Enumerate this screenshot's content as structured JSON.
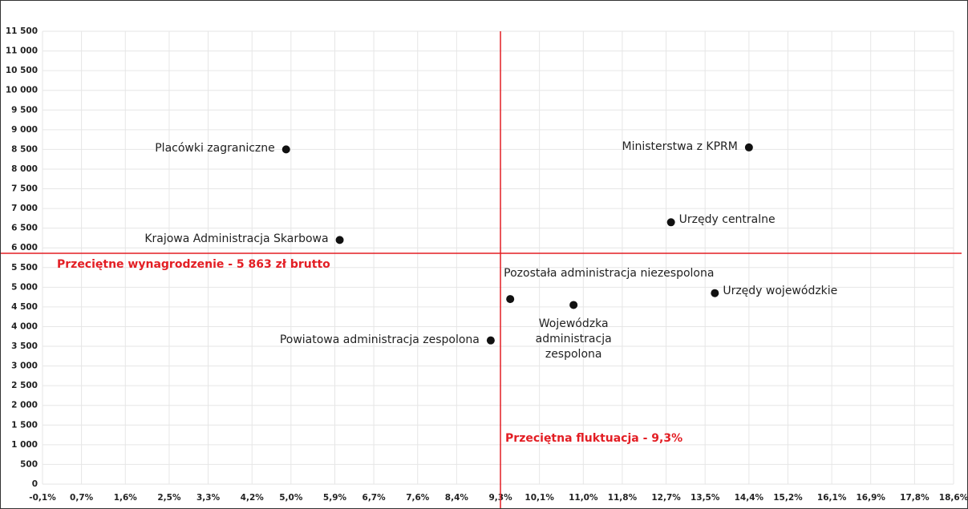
{
  "chart_data": {
    "type": "scatter",
    "xlim": [
      -0.1,
      18.6
    ],
    "xticks": [
      {
        "value": -0.1,
        "label": "-0,1%"
      },
      {
        "value": 0.7,
        "label": "0,7%"
      },
      {
        "value": 1.6,
        "label": "1,6%"
      },
      {
        "value": 2.5,
        "label": "2,5%"
      },
      {
        "value": 3.3,
        "label": "3,3%"
      },
      {
        "value": 4.2,
        "label": "4,2%"
      },
      {
        "value": 5.0,
        "label": "5,0%"
      },
      {
        "value": 5.9,
        "label": "5,9%"
      },
      {
        "value": 6.7,
        "label": "6,7%"
      },
      {
        "value": 7.6,
        "label": "7,6%"
      },
      {
        "value": 8.4,
        "label": "8,4%"
      },
      {
        "value": 9.3,
        "label": "9,3%"
      },
      {
        "value": 10.1,
        "label": "10,1%"
      },
      {
        "value": 11.0,
        "label": "11,0%"
      },
      {
        "value": 11.8,
        "label": "11,8%"
      },
      {
        "value": 12.7,
        "label": "12,7%"
      },
      {
        "value": 13.5,
        "label": "13,5%"
      },
      {
        "value": 14.4,
        "label": "14,4%"
      },
      {
        "value": 15.2,
        "label": "15,2%"
      },
      {
        "value": 16.1,
        "label": "16,1%"
      },
      {
        "value": 16.9,
        "label": "16,9%"
      },
      {
        "value": 17.8,
        "label": "17,8%"
      },
      {
        "value": 18.6,
        "label": "18,6%"
      }
    ],
    "ylim": [
      0,
      11500
    ],
    "yticks": [
      0,
      500,
      {
        "value": 1000,
        "label": "1 000"
      },
      {
        "value": 1500,
        "label": "1 500"
      },
      {
        "value": 2000,
        "label": "2 000"
      },
      {
        "value": 2500,
        "label": "2 500"
      },
      {
        "value": 3000,
        "label": "3 000"
      },
      {
        "value": 3500,
        "label": "3 500"
      },
      {
        "value": 4000,
        "label": "4 000"
      },
      {
        "value": 4500,
        "label": "4 500"
      },
      {
        "value": 5000,
        "label": "5 000"
      },
      {
        "value": 5500,
        "label": "5 500"
      },
      {
        "value": 6000,
        "label": "6 000"
      },
      {
        "value": 6500,
        "label": "6 500"
      },
      {
        "value": 7000,
        "label": "7 000"
      },
      {
        "value": 7500,
        "label": "7 500"
      },
      {
        "value": 8000,
        "label": "8 000"
      },
      {
        "value": 8500,
        "label": "8 500"
      },
      {
        "value": 9000,
        "label": "9 000"
      },
      {
        "value": 9500,
        "label": "9 500"
      },
      {
        "value": 10000,
        "label": "10 000"
      },
      {
        "value": 10500,
        "label": "10 500"
      },
      {
        "value": 11000,
        "label": "11 000"
      },
      {
        "value": 11500,
        "label": "11 500"
      }
    ],
    "grid": true,
    "color": "#111111",
    "points": [
      {
        "name": "Placówki zagraniczne",
        "x": 4.9,
        "y": 8500
      },
      {
        "name": "Krajowa Administracja Skarbowa",
        "x": 6.0,
        "y": 6200
      },
      {
        "name": "Ministerstwa z KPRM",
        "x": 14.4,
        "y": 8550
      },
      {
        "name": "Urzędy centralne",
        "x": 12.8,
        "y": 6650
      },
      {
        "name": "Urzędy wojewódzkie",
        "x": 13.7,
        "y": 4850
      },
      {
        "name": "Pozostała administracja niezespolona",
        "x": 9.5,
        "y": 4700
      },
      {
        "name": "Wojewódzka administracja zespolona",
        "x": 10.8,
        "y": 4550
      },
      {
        "name": "Powiatowa administracja zespolona",
        "x": 9.1,
        "y": 3650
      }
    ],
    "reference_lines": [
      {
        "axis": "y",
        "value": 5863,
        "label": "Przeciętne wynagrodzenie - 5 863 zł brutto",
        "color": "#e31e24"
      },
      {
        "axis": "x",
        "value": 9.3,
        "label": "Przeciętna fluktuacja - 9,3%",
        "color": "#e31e24"
      }
    ]
  }
}
